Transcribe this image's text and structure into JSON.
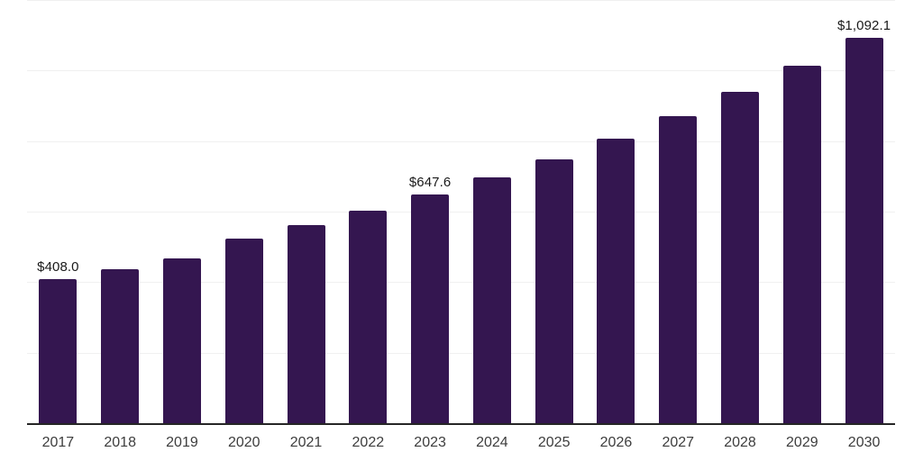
{
  "chart_data": {
    "type": "bar",
    "title": "",
    "xlabel": "",
    "ylabel": "",
    "categories": [
      "2017",
      "2018",
      "2019",
      "2020",
      "2021",
      "2022",
      "2023",
      "2024",
      "2025",
      "2026",
      "2027",
      "2028",
      "2029",
      "2030"
    ],
    "values": [
      408.0,
      436.3,
      467.8,
      522.5,
      561.0,
      603.0,
      647.6,
      696.5,
      748.5,
      808.0,
      870.0,
      939.5,
      1014.5,
      1092.1
    ],
    "value_labels": [
      "$408.0",
      null,
      null,
      null,
      null,
      null,
      "$647.6",
      null,
      null,
      null,
      null,
      null,
      null,
      "$1,092.1"
    ],
    "ylim": [
      0,
      1200
    ],
    "gridline_step": 200,
    "grid": "horizontal",
    "legend": "none",
    "y_tick_labels_visible": false,
    "colors": {
      "bar": "#341650",
      "gridline": "#f0f0f0",
      "axis": "#262626",
      "x_tick_label": "#3d3d3d",
      "value_label": "#1a1a1a",
      "background": "#ffffff"
    }
  }
}
